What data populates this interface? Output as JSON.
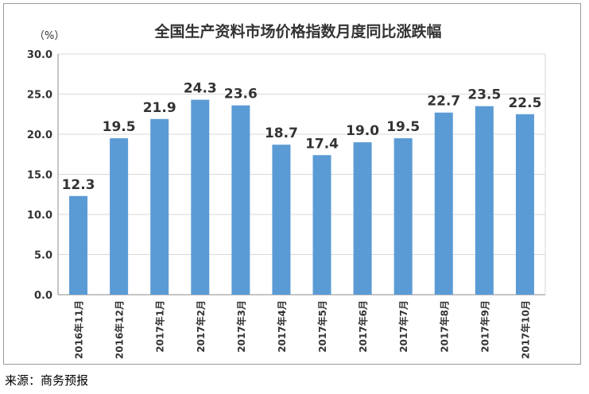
{
  "chart_data": {
    "type": "bar",
    "title": "全国生产资料市场价格指数月度同比涨跌幅",
    "unit_label": "（%）",
    "categories": [
      "2016年11月",
      "2016年12月",
      "2017年1月",
      "2017年2月",
      "2017年3月",
      "2017年4月",
      "2017年5月",
      "2017年6月",
      "2017年7月",
      "2017年8月",
      "2017年9月",
      "2017年10月"
    ],
    "values": [
      12.3,
      19.5,
      21.9,
      24.3,
      23.6,
      18.7,
      17.4,
      19.0,
      19.5,
      22.7,
      23.5,
      22.5
    ],
    "value_labels": [
      "12.3",
      "19.5",
      "21.9",
      "24.3",
      "23.6",
      "18.7",
      "17.4",
      "19.0",
      "19.5",
      "22.7",
      "23.5",
      "22.5"
    ],
    "ylim": [
      0,
      30
    ],
    "yticks": [
      "0.0",
      "5.0",
      "10.0",
      "15.0",
      "20.0",
      "25.0",
      "30.0"
    ],
    "grid": true,
    "bar_color": "#5b9bd5"
  },
  "source": "来源：商务预报"
}
